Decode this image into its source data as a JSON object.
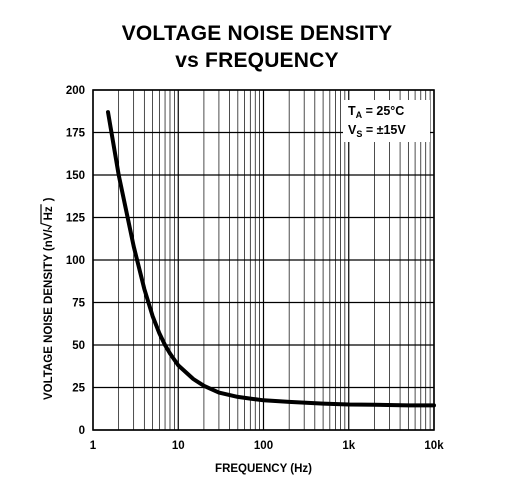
{
  "title_line1": "VOLTAGE NOISE DENSITY",
  "title_line2": "vs FREQUENCY",
  "chart_data": {
    "type": "line",
    "title": "VOLTAGE NOISE DENSITY vs FREQUENCY",
    "xlabel": "FREQUENCY (Hz)",
    "ylabel_prefix": "VOLTAGE NOISE DENSITY (nV/",
    "ylabel_radicand": "Hz",
    "ylabel_suffix": ")",
    "x_scale": "log",
    "xlim": [
      1,
      10000
    ],
    "ylim": [
      0,
      200
    ],
    "x_ticks": [
      1,
      10,
      100,
      1000,
      10000
    ],
    "x_tick_labels": [
      "1",
      "10",
      "100",
      "1k",
      "10k"
    ],
    "y_ticks": [
      0,
      25,
      50,
      75,
      100,
      125,
      150,
      175,
      200
    ],
    "y_tick_labels": [
      "0",
      "25",
      "50",
      "75",
      "100",
      "125",
      "150",
      "175",
      "200"
    ],
    "grid": true,
    "annotation": {
      "line1_main": "T",
      "line1_sub": "A",
      "line1_rest": " = 25°C",
      "line2_main": "V",
      "line2_sub": "S",
      "line2_rest": " = ±15V"
    },
    "series": [
      {
        "x": [
          1.5,
          2,
          3,
          4,
          5,
          6,
          7,
          8,
          10,
          15,
          20,
          30,
          50,
          70,
          100,
          200,
          500,
          1000,
          2000,
          5000,
          10000
        ],
        "y": [
          187,
          150,
          108,
          83,
          67,
          57,
          50,
          45,
          38,
          30,
          26,
          22,
          19.5,
          18.5,
          17.5,
          16.5,
          15.5,
          15,
          14.8,
          14.5,
          14.5
        ]
      }
    ]
  }
}
